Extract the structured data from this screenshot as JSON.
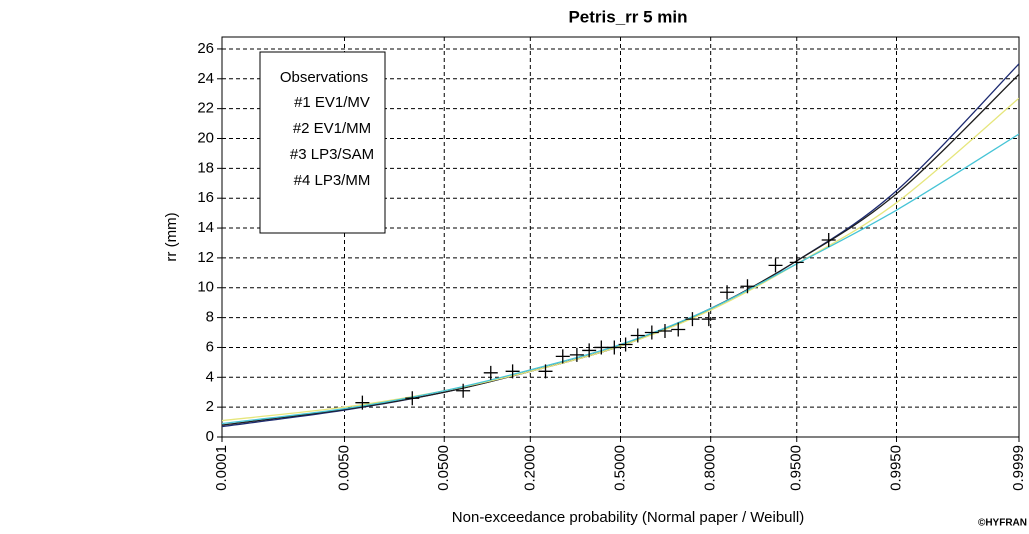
{
  "chart_data": {
    "type": "scatter",
    "title": "Petris_rr 5 min",
    "xlabel": "Non-exceedance probability (Normal paper / Weibull)",
    "ylabel": "rr (mm)",
    "credit": "©HYFRAN",
    "xscale": "normal",
    "grid": true,
    "legend": "upper left",
    "legend_title": "Observations",
    "xlim": [
      0.0001,
      0.9999
    ],
    "xticks": [
      0.0001,
      {
        "value": 0.005,
        "label": "0.0050"
      },
      {
        "value": 0.05,
        "label": "0.0500"
      },
      {
        "value": 0.2,
        "label": "0.2000"
      },
      {
        "value": 0.5,
        "label": "0.5000"
      },
      {
        "value": 0.8,
        "label": "0.8000"
      },
      {
        "value": 0.95,
        "label": "0.9500"
      },
      {
        "value": 0.995,
        "label": "0.9950"
      },
      0.9999
    ],
    "ylim": [
      0,
      26.8
    ],
    "yticks": [
      0,
      2,
      4,
      6,
      8,
      10,
      12,
      14,
      16,
      18,
      20,
      22,
      24,
      26
    ],
    "observations": {
      "color": "#000000",
      "x": [
        0.008,
        0.026,
        0.071,
        0.113,
        0.157,
        0.242,
        0.295,
        0.342,
        0.385,
        0.429,
        0.477,
        0.519,
        0.564,
        0.615,
        0.661,
        0.705,
        0.749,
        0.795,
        0.84,
        0.882,
        0.926,
        0.95,
        0.974
      ],
      "values": [
        2.3,
        2.6,
        3.1,
        4.3,
        4.4,
        4.4,
        5.4,
        5.5,
        5.8,
        6.0,
        6.0,
        6.2,
        6.8,
        7.0,
        7.1,
        7.2,
        7.9,
        7.9,
        9.7,
        10.1,
        11.5,
        11.7,
        13.2
      ]
    },
    "series": [
      {
        "name": "#1 EV1/MV",
        "color": "#1c2a70",
        "x": [
          0.0001,
          0.005,
          0.05,
          0.2,
          0.5,
          0.8,
          0.95,
          0.995,
          0.9999
        ],
        "values": [
          0.7,
          1.8,
          3.0,
          4.4,
          6.1,
          8.6,
          11.8,
          16.5,
          25.0
        ]
      },
      {
        "name": "#2 EV1/MM",
        "color": "#1e1e1e",
        "x": [
          0.0001,
          0.005,
          0.05,
          0.2,
          0.5,
          0.8,
          0.95,
          0.995,
          0.9999
        ],
        "values": [
          0.8,
          1.85,
          3.0,
          4.4,
          6.1,
          8.6,
          11.8,
          16.3,
          24.3
        ]
      },
      {
        "name": "#3 LP3/SAM",
        "color": "#e6e67c",
        "x": [
          0.0001,
          0.005,
          0.05,
          0.2,
          0.5,
          0.8,
          0.95,
          0.995,
          0.9999
        ],
        "values": [
          1.1,
          2.0,
          3.1,
          4.4,
          6.1,
          8.5,
          11.6,
          15.7,
          22.7
        ]
      },
      {
        "name": "#4 LP3/MM",
        "color": "#46c4d6",
        "x": [
          0.0001,
          0.005,
          0.05,
          0.2,
          0.5,
          0.8,
          0.95,
          0.995,
          0.9999
        ],
        "values": [
          0.9,
          1.9,
          3.1,
          4.5,
          6.2,
          8.6,
          11.6,
          15.2,
          20.3
        ]
      }
    ]
  }
}
